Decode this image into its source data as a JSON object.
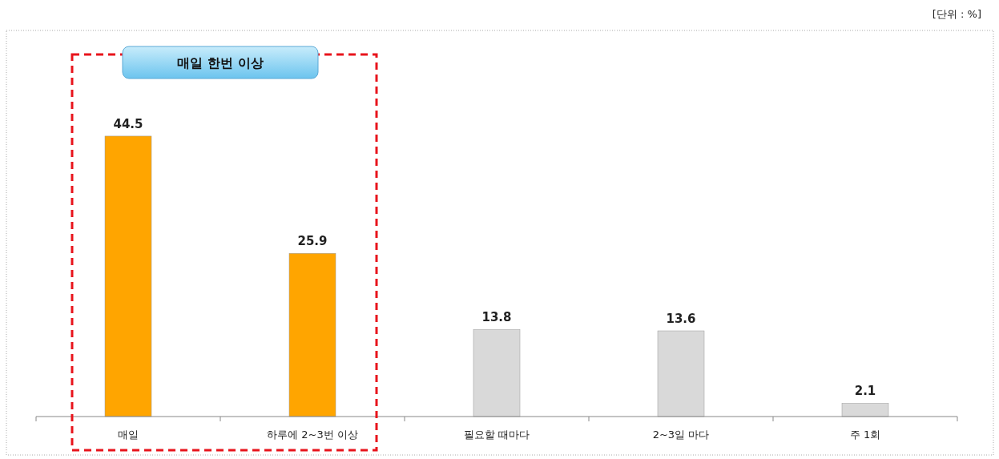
{
  "chart_data": {
    "type": "bar",
    "categories": [
      "매일",
      "하루에 2~3번 이상",
      "필요할 때마다",
      "2~3일 마다",
      "주 1회"
    ],
    "values": [
      44.5,
      25.9,
      13.8,
      13.6,
      2.1
    ],
    "colors": [
      "#ffa500",
      "#ffa500",
      "#d9d9d9",
      "#d9d9d9",
      "#d9d9d9"
    ],
    "data_labels": true,
    "annotations": [
      "[단위 : %]",
      "매일 한번 이상"
    ]
  }
}
